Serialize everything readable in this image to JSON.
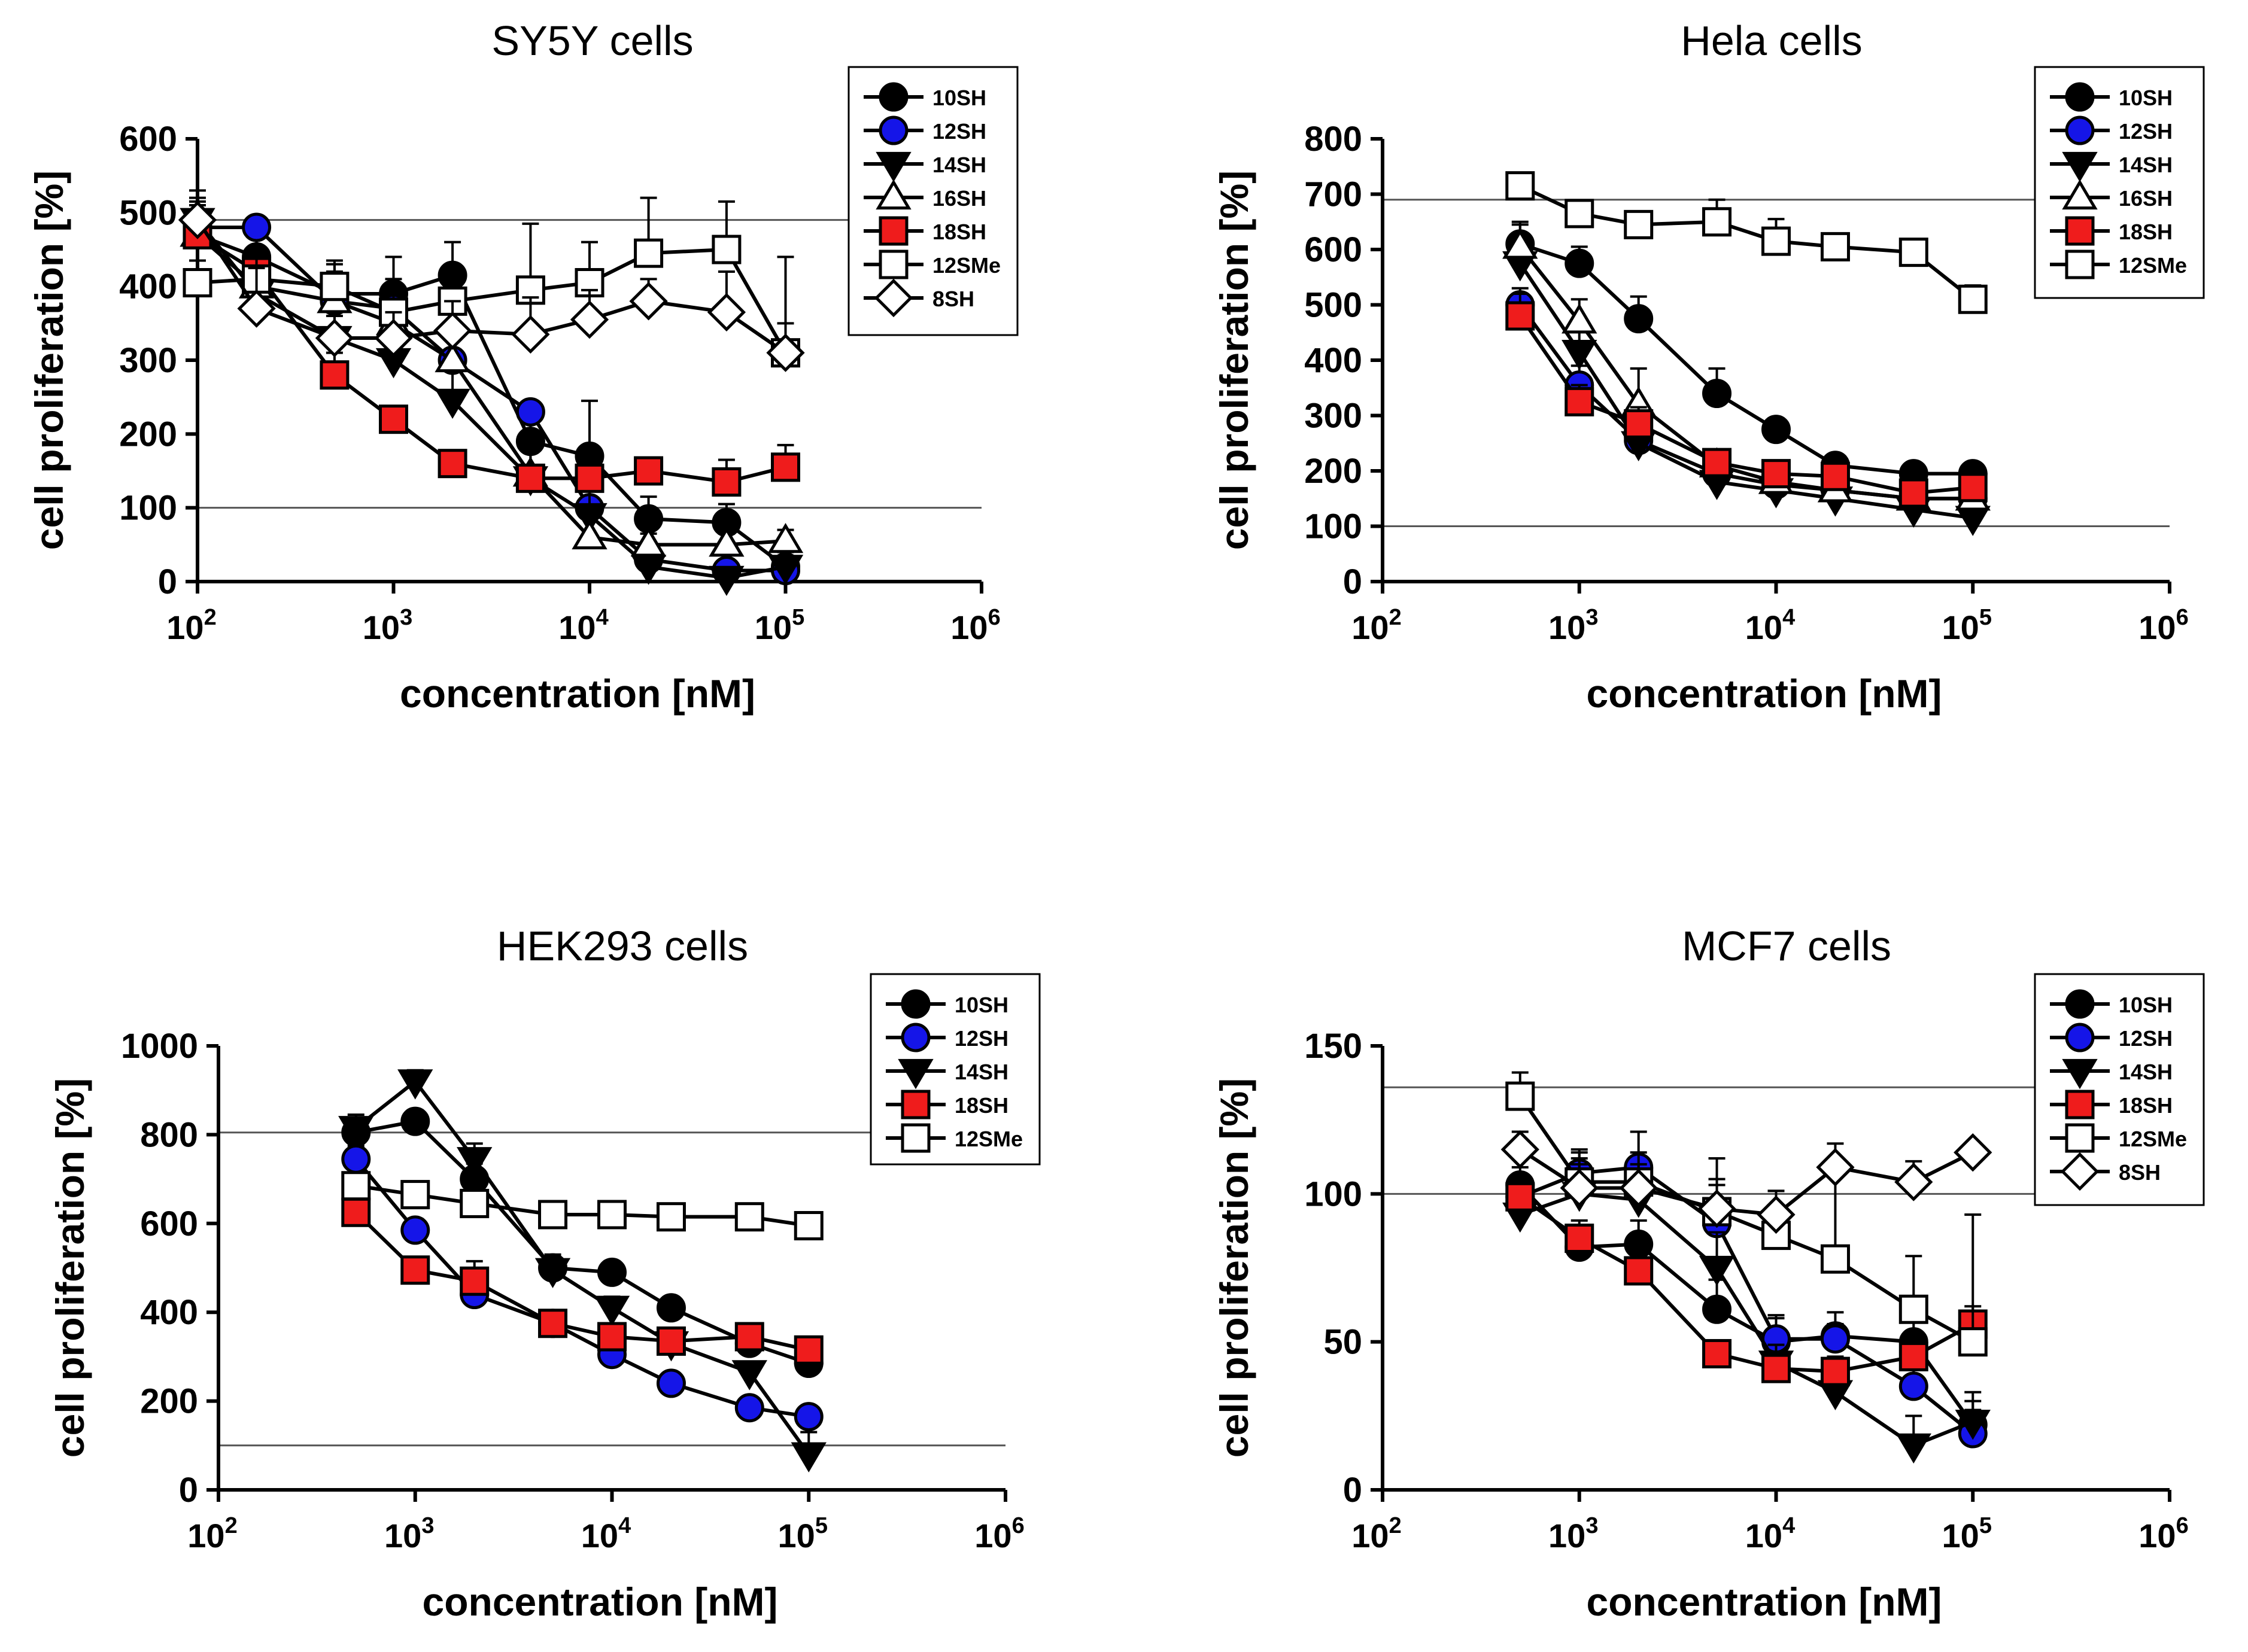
{
  "figure": {
    "panels": [
      "SY5Y",
      "Hela",
      "HEK293",
      "MCF7"
    ]
  },
  "colors": {
    "black": "#000000",
    "blue": "#1515e8",
    "red": "#ef1c1c",
    "white": "#ffffff",
    "refline": "#555555"
  },
  "chart_data": [
    {
      "id": "sy5y",
      "type": "line",
      "title": "SY5Y cells",
      "xlabel": "concentration [nM]",
      "ylabel": "cell proliferation [%]",
      "xscale": "log",
      "xlim": [
        100,
        1000000
      ],
      "ylim": [
        0,
        600
      ],
      "yticks": [
        0,
        100,
        200,
        300,
        400,
        500,
        600
      ],
      "yticklabels": [
        "0",
        "100",
        "200",
        "300",
        "400",
        "500",
        "600"
      ],
      "xticks": [
        2,
        3,
        4,
        5,
        6
      ],
      "xticklabels": [
        "10",
        "10",
        "10",
        "10",
        "10"
      ],
      "xtickexp": [
        "2",
        "3",
        "4",
        "5",
        "6"
      ],
      "reference_lines": [
        100,
        490
      ],
      "legend_position": "top-right",
      "series": [
        {
          "name": "10SH",
          "marker": "circle",
          "fill": "#000000",
          "x": [
            100,
            200,
            500,
            1000,
            2000,
            5000,
            10000,
            20000,
            50000,
            100000
          ],
          "y": [
            470,
            440,
            390,
            390,
            415,
            190,
            170,
            85,
            80,
            20
          ],
          "err": [
            45,
            40,
            40,
            50,
            45,
            50,
            75,
            30,
            25,
            20
          ]
        },
        {
          "name": "12SH",
          "marker": "circle",
          "fill": "#1515e8",
          "x": [
            100,
            200,
            500,
            1000,
            2000,
            5000,
            10000,
            20000,
            50000,
            100000
          ],
          "y": [
            480,
            480,
            380,
            370,
            300,
            230,
            100,
            30,
            15,
            15
          ],
          "err": [
            30,
            0,
            30,
            40,
            35,
            0,
            40,
            20,
            15,
            10
          ]
        },
        {
          "name": "14SH",
          "marker": "triangle-down",
          "fill": "#000000",
          "x": [
            100,
            200,
            500,
            1000,
            2000,
            5000,
            10000,
            20000,
            50000,
            100000
          ],
          "y": [
            490,
            390,
            330,
            300,
            245,
            140,
            90,
            20,
            5,
            20
          ],
          "err": [
            40,
            40,
            35,
            45,
            45,
            55,
            45,
            15,
            5,
            15
          ]
        },
        {
          "name": "16SH",
          "marker": "triangle-up",
          "fill": "#ffffff",
          "x": [
            100,
            200,
            500,
            1000,
            2000,
            5000,
            10000,
            20000,
            50000,
            100000
          ],
          "y": [
            470,
            400,
            380,
            350,
            300,
            145,
            60,
            50,
            50,
            55
          ],
          "err": [
            40,
            45,
            40,
            40,
            45,
            50,
            30,
            15,
            15,
            15
          ]
        },
        {
          "name": "18SH",
          "marker": "square",
          "fill": "#ef1c1c",
          "x": [
            100,
            200,
            500,
            1000,
            2000,
            5000,
            10000,
            20000,
            50000,
            100000
          ],
          "y": [
            470,
            420,
            280,
            220,
            160,
            140,
            140,
            150,
            135,
            155
          ],
          "err": [
            30,
            25,
            30,
            0,
            0,
            55,
            20,
            0,
            30,
            30
          ]
        },
        {
          "name": "12SMe",
          "marker": "square",
          "fill": "#ffffff",
          "x": [
            100,
            200,
            500,
            1000,
            2000,
            5000,
            10000,
            20000,
            50000,
            100000
          ],
          "y": [
            405,
            410,
            400,
            365,
            380,
            395,
            405,
            445,
            450,
            310
          ],
          "err": [
            30,
            30,
            35,
            35,
            35,
            90,
            55,
            75,
            65,
            130
          ]
        },
        {
          "name": "8SH",
          "marker": "diamond",
          "fill": "#ffffff",
          "x": [
            100,
            200,
            500,
            1000,
            2000,
            5000,
            10000,
            20000,
            50000,
            100000
          ],
          "y": [
            490,
            370,
            330,
            330,
            340,
            335,
            355,
            380,
            365,
            310
          ],
          "err": [
            30,
            55,
            30,
            35,
            40,
            50,
            40,
            30,
            55,
            40
          ]
        }
      ]
    },
    {
      "id": "hela",
      "type": "line",
      "title": "Hela cells",
      "xlabel": "concentration [nM]",
      "ylabel": "cell proliferation [%]",
      "xscale": "log",
      "xlim": [
        100,
        1000000
      ],
      "ylim": [
        0,
        800
      ],
      "yticks": [
        0,
        100,
        200,
        300,
        400,
        500,
        600,
        700,
        800
      ],
      "yticklabels": [
        "0",
        "100",
        "200",
        "300",
        "400",
        "500",
        "600",
        "700",
        "800"
      ],
      "xticks": [
        2,
        3,
        4,
        5,
        6
      ],
      "xticklabels": [
        "10",
        "10",
        "10",
        "10",
        "10"
      ],
      "xtickexp": [
        "2",
        "3",
        "4",
        "5",
        "6"
      ],
      "reference_lines": [
        100,
        690
      ],
      "legend_position": "top-right",
      "series": [
        {
          "name": "10SH",
          "marker": "circle",
          "fill": "#000000",
          "x": [
            500,
            1000,
            2000,
            5000,
            10000,
            20000,
            50000,
            100000
          ],
          "y": [
            610,
            575,
            475,
            340,
            275,
            210,
            195,
            195
          ],
          "err": [
            35,
            30,
            40,
            45,
            20,
            15,
            15,
            15
          ]
        },
        {
          "name": "12SH",
          "marker": "circle",
          "fill": "#1515e8",
          "x": [
            500,
            1000,
            2000,
            5000,
            10000,
            20000,
            50000,
            100000
          ],
          "y": [
            500,
            355,
            255,
            195,
            175,
            165,
            150,
            150
          ],
          "err": [
            30,
            35,
            30,
            20,
            15,
            15,
            15,
            15
          ]
        },
        {
          "name": "14SH",
          "marker": "triangle-down",
          "fill": "#000000",
          "x": [
            500,
            1000,
            2000,
            5000,
            10000,
            20000,
            50000,
            100000
          ],
          "y": [
            575,
            415,
            250,
            180,
            165,
            150,
            130,
            115
          ],
          "err": [
            35,
            40,
            35,
            20,
            20,
            15,
            15,
            15
          ]
        },
        {
          "name": "16SH",
          "marker": "triangle-up",
          "fill": "#ffffff",
          "x": [
            500,
            1000,
            2000,
            5000,
            10000,
            20000,
            50000,
            100000
          ],
          "y": [
            605,
            470,
            320,
            210,
            180,
            165,
            150,
            150
          ],
          "err": [
            45,
            40,
            65,
            20,
            15,
            15,
            15,
            15
          ]
        },
        {
          "name": "18SH",
          "marker": "square",
          "fill": "#ef1c1c",
          "x": [
            500,
            1000,
            2000,
            5000,
            10000,
            20000,
            50000,
            100000
          ],
          "y": [
            480,
            325,
            285,
            215,
            195,
            190,
            160,
            170
          ],
          "err": [
            40,
            30,
            30,
            15,
            15,
            15,
            15,
            15
          ]
        },
        {
          "name": "12SMe",
          "marker": "square",
          "fill": "#ffffff",
          "x": [
            500,
            1000,
            2000,
            5000,
            10000,
            20000,
            50000,
            100000
          ],
          "y": [
            715,
            665,
            645,
            650,
            615,
            605,
            595,
            510
          ],
          "err": [
            20,
            20,
            20,
            40,
            40,
            20,
            20,
            25
          ]
        }
      ]
    },
    {
      "id": "hek293",
      "type": "line",
      "title": "HEK293 cells",
      "xlabel": "concentration [nM]",
      "ylabel": "cell proliferation [%]",
      "xscale": "log",
      "xlim": [
        100,
        1000000
      ],
      "ylim": [
        0,
        1000
      ],
      "yticks": [
        0,
        200,
        400,
        600,
        800,
        1000
      ],
      "yticklabels": [
        "0",
        "200",
        "400",
        "600",
        "800",
        "1000"
      ],
      "xticks": [
        2,
        3,
        4,
        5,
        6
      ],
      "xticklabels": [
        "10",
        "10",
        "10",
        "10",
        "10"
      ],
      "xtickexp": [
        "2",
        "3",
        "4",
        "5",
        "6"
      ],
      "reference_lines": [
        100,
        805
      ],
      "legend_position": "top-right",
      "series": [
        {
          "name": "10SH",
          "marker": "circle",
          "fill": "#000000",
          "x": [
            500,
            1000,
            2000,
            5000,
            10000,
            20000,
            50000,
            100000
          ],
          "y": [
            805,
            830,
            700,
            500,
            490,
            410,
            330,
            285
          ],
          "err": [
            30,
            25,
            35,
            30,
            25,
            20,
            20,
            25
          ]
        },
        {
          "name": "12SH",
          "marker": "circle",
          "fill": "#1515e8",
          "x": [
            500,
            1000,
            2000,
            5000,
            10000,
            20000,
            50000,
            100000
          ],
          "y": [
            745,
            585,
            440,
            375,
            305,
            240,
            185,
            165
          ],
          "err": [
            30,
            25,
            25,
            20,
            20,
            15,
            15,
            15
          ]
        },
        {
          "name": "14SH",
          "marker": "triangle-down",
          "fill": "#000000",
          "x": [
            500,
            1000,
            2000,
            5000,
            10000,
            20000,
            50000,
            100000
          ],
          "y": [
            815,
            920,
            745,
            495,
            410,
            330,
            265,
            80
          ],
          "err": [
            30,
            25,
            35,
            30,
            25,
            20,
            20,
            50
          ]
        },
        {
          "name": "18SH",
          "marker": "square",
          "fill": "#ef1c1c",
          "x": [
            500,
            1000,
            2000,
            5000,
            10000,
            20000,
            50000,
            100000
          ],
          "y": [
            625,
            495,
            470,
            375,
            345,
            335,
            345,
            315
          ],
          "err": [
            30,
            25,
            45,
            20,
            20,
            20,
            20,
            20
          ]
        },
        {
          "name": "12SMe",
          "marker": "square",
          "fill": "#ffffff",
          "x": [
            500,
            1000,
            2000,
            5000,
            10000,
            20000,
            50000,
            100000
          ],
          "y": [
            685,
            665,
            645,
            620,
            620,
            615,
            615,
            595
          ],
          "err": [
            30,
            25,
            25,
            25,
            30,
            20,
            25,
            25
          ]
        }
      ]
    },
    {
      "id": "mcf7",
      "type": "line",
      "title": "MCF7 cells",
      "xlabel": "concentration [nM]",
      "ylabel": "cell proliferation [%]",
      "xscale": "log",
      "xlim": [
        100,
        1000000
      ],
      "ylim": [
        0,
        150
      ],
      "yticks": [
        0,
        50,
        100,
        150
      ],
      "yticklabels": [
        "0",
        "50",
        "100",
        "150"
      ],
      "xticks": [
        2,
        3,
        4,
        5,
        6
      ],
      "xticklabels": [
        "10",
        "10",
        "10",
        "10",
        "10"
      ],
      "xtickexp": [
        "2",
        "3",
        "4",
        "5",
        "6"
      ],
      "reference_lines": [
        100,
        136
      ],
      "legend_position": "top-right",
      "series": [
        {
          "name": "10SH",
          "marker": "circle",
          "fill": "#000000",
          "x": [
            500,
            1000,
            2000,
            5000,
            10000,
            20000,
            50000,
            100000
          ],
          "y": [
            103,
            82,
            83,
            61,
            50,
            52,
            50,
            22
          ],
          "err": [
            6,
            6,
            8,
            10,
            8,
            8,
            8,
            8
          ]
        },
        {
          "name": "12SH",
          "marker": "circle",
          "fill": "#1515e8",
          "x": [
            500,
            1000,
            2000,
            5000,
            10000,
            20000,
            50000,
            100000
          ],
          "y": [
            99,
            107,
            109,
            90,
            51,
            51,
            35,
            19
          ],
          "err": [
            6,
            8,
            12,
            15,
            8,
            5,
            10,
            8
          ]
        },
        {
          "name": "14SH",
          "marker": "triangle-down",
          "fill": "#000000",
          "x": [
            500,
            1000,
            2000,
            5000,
            10000,
            20000,
            50000,
            100000
          ],
          "y": [
            93,
            100,
            98,
            75,
            43,
            33,
            15,
            23
          ],
          "err": [
            7,
            12,
            10,
            12,
            6,
            5,
            10,
            10
          ]
        },
        {
          "name": "18SH",
          "marker": "square",
          "fill": "#ef1c1c",
          "x": [
            500,
            1000,
            2000,
            5000,
            10000,
            20000,
            50000,
            100000
          ],
          "y": [
            99,
            85,
            74,
            46,
            41,
            40,
            45,
            56
          ],
          "err": [
            5,
            6,
            6,
            4,
            5,
            5,
            8,
            37
          ]
        },
        {
          "name": "12SMe",
          "marker": "square",
          "fill": "#ffffff",
          "x": [
            500,
            1000,
            2000,
            5000,
            10000,
            20000,
            50000,
            100000
          ],
          "y": [
            133,
            104,
            104,
            94,
            86,
            78,
            61,
            50
          ],
          "err": [
            8,
            10,
            10,
            18,
            15,
            30,
            18,
            12
          ]
        },
        {
          "name": "8SH",
          "marker": "diamond",
          "fill": "#ffffff",
          "x": [
            500,
            1000,
            2000,
            5000,
            10000,
            20000,
            50000,
            100000
          ],
          "y": [
            115,
            102,
            102,
            95,
            93,
            109,
            104,
            114
          ],
          "err": [
            6,
            8,
            8,
            8,
            8,
            8,
            7,
            0
          ]
        }
      ]
    }
  ]
}
